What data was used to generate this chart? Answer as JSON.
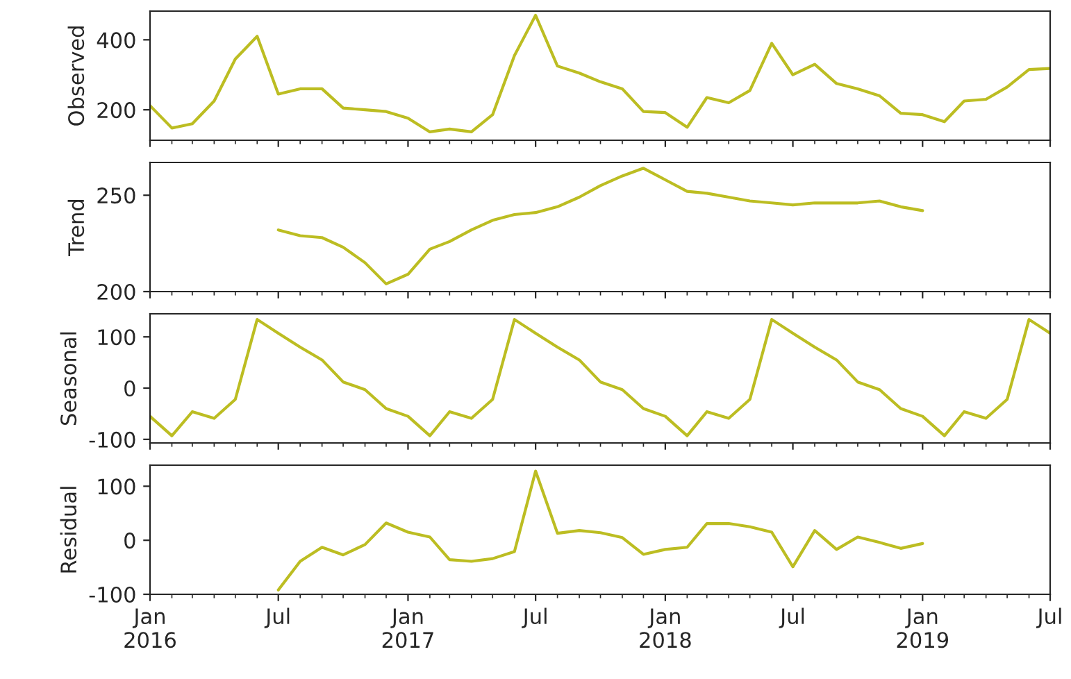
{
  "chart_data": [
    {
      "type": "line",
      "ylabel": "Observed",
      "color": "#bcbd22",
      "x": [
        "2016-01",
        "2016-02",
        "2016-03",
        "2016-04",
        "2016-05",
        "2016-06",
        "2016-07",
        "2016-08",
        "2016-09",
        "2016-10",
        "2016-11",
        "2016-12",
        "2017-01",
        "2017-02",
        "2017-03",
        "2017-04",
        "2017-05",
        "2017-06",
        "2017-07",
        "2017-08",
        "2017-09",
        "2017-10",
        "2017-11",
        "2017-12",
        "2018-01",
        "2018-02",
        "2018-03",
        "2018-04",
        "2018-05",
        "2018-06",
        "2018-07",
        "2018-08",
        "2018-09",
        "2018-10",
        "2018-11",
        "2018-12",
        "2019-01",
        "2019-02",
        "2019-03",
        "2019-04",
        "2019-05",
        "2019-06",
        "2019-07"
      ],
      "values": [
        212,
        148,
        160,
        225,
        345,
        410,
        245,
        260,
        260,
        205,
        200,
        195,
        176,
        137,
        145,
        137,
        186,
        355,
        470,
        325,
        305,
        280,
        260,
        195,
        192,
        150,
        235,
        220,
        255,
        390,
        300,
        330,
        275,
        260,
        240,
        190,
        186,
        166,
        225,
        230,
        265,
        315,
        318
      ],
      "ylim": [
        113,
        482
      ],
      "yticks": [
        200,
        400
      ],
      "xlim": [
        "2016-01",
        "2019-07"
      ],
      "tick_labels": "y"
    },
    {
      "type": "line",
      "ylabel": "Trend",
      "color": "#bcbd22",
      "x": [
        "2016-07",
        "2016-08",
        "2016-09",
        "2016-10",
        "2016-11",
        "2016-12",
        "2017-01",
        "2017-02",
        "2017-03",
        "2017-04",
        "2017-05",
        "2017-06",
        "2017-07",
        "2017-08",
        "2017-09",
        "2017-10",
        "2017-11",
        "2017-12",
        "2018-01",
        "2018-02",
        "2018-03",
        "2018-04",
        "2018-05",
        "2018-06",
        "2018-07",
        "2018-08",
        "2018-09",
        "2018-10",
        "2018-11",
        "2018-12",
        "2019-01"
      ],
      "values": [
        232,
        229,
        228,
        223,
        215,
        204,
        209,
        222,
        226,
        232,
        237,
        240,
        241,
        244,
        249,
        255,
        260,
        264,
        258,
        252,
        251,
        249,
        247,
        246,
        245,
        246,
        246,
        246,
        247,
        244,
        242
      ],
      "ylim": [
        200,
        267
      ],
      "yticks": [
        200,
        250
      ],
      "xlim": [
        "2016-01",
        "2019-07"
      ],
      "tick_labels": "y"
    },
    {
      "type": "line",
      "ylabel": "Seasonal",
      "color": "#bcbd22",
      "x": [
        "2016-01",
        "2016-02",
        "2016-03",
        "2016-04",
        "2016-05",
        "2016-06",
        "2016-07",
        "2016-08",
        "2016-09",
        "2016-10",
        "2016-11",
        "2016-12",
        "2017-01",
        "2017-02",
        "2017-03",
        "2017-04",
        "2017-05",
        "2017-06",
        "2017-07",
        "2017-08",
        "2017-09",
        "2017-10",
        "2017-11",
        "2017-12",
        "2018-01",
        "2018-02",
        "2018-03",
        "2018-04",
        "2018-05",
        "2018-06",
        "2018-07",
        "2018-08",
        "2018-09",
        "2018-10",
        "2018-11",
        "2018-12",
        "2019-01",
        "2019-02",
        "2019-03",
        "2019-04",
        "2019-05",
        "2019-06",
        "2019-07"
      ],
      "values": [
        -55,
        -93,
        -46,
        -59,
        -22,
        134,
        107,
        80,
        55,
        12,
        -3,
        -40,
        -55,
        -93,
        -46,
        -59,
        -22,
        134,
        107,
        80,
        55,
        12,
        -3,
        -40,
        -55,
        -93,
        -46,
        -59,
        -22,
        134,
        107,
        80,
        55,
        12,
        -3,
        -40,
        -55,
        -93,
        -46,
        -59,
        -22,
        134,
        107
      ],
      "ylim": [
        -107,
        145
      ],
      "yticks": [
        -100,
        0,
        100
      ],
      "xlim": [
        "2016-01",
        "2019-07"
      ],
      "tick_labels": "y"
    },
    {
      "type": "line",
      "ylabel": "Residual",
      "color": "#bcbd22",
      "x": [
        "2016-07",
        "2016-08",
        "2016-09",
        "2016-10",
        "2016-11",
        "2016-12",
        "2017-01",
        "2017-02",
        "2017-03",
        "2017-04",
        "2017-05",
        "2017-06",
        "2017-07",
        "2017-08",
        "2017-09",
        "2017-10",
        "2017-11",
        "2017-12",
        "2018-01",
        "2018-02",
        "2018-03",
        "2018-04",
        "2018-05",
        "2018-06",
        "2018-07",
        "2018-08",
        "2018-09",
        "2018-10",
        "2018-11",
        "2018-12",
        "2019-01"
      ],
      "values": [
        -92,
        -39,
        -13,
        -27,
        -8,
        32,
        15,
        6,
        -36,
        -39,
        -34,
        -21,
        128,
        13,
        18,
        14,
        5,
        -26,
        -17,
        -13,
        31,
        31,
        25,
        15,
        -49,
        18,
        -17,
        6,
        -4,
        -15,
        -6
      ],
      "ylim": [
        -100,
        139
      ],
      "yticks": [
        -100,
        0,
        100
      ],
      "xlim": [
        "2016-01",
        "2019-07"
      ],
      "xticks": [
        {
          "value": "2016-01",
          "label": "Jan\n2016"
        },
        {
          "value": "2016-07",
          "label": "Jul"
        },
        {
          "value": "2017-01",
          "label": "Jan\n2017"
        },
        {
          "value": "2017-07",
          "label": "Jul"
        },
        {
          "value": "2018-01",
          "label": "Jan\n2018"
        },
        {
          "value": "2018-07",
          "label": "Jul"
        },
        {
          "value": "2019-01",
          "label": "Jan\n2019"
        },
        {
          "value": "2019-07",
          "label": "Jul"
        }
      ]
    }
  ]
}
